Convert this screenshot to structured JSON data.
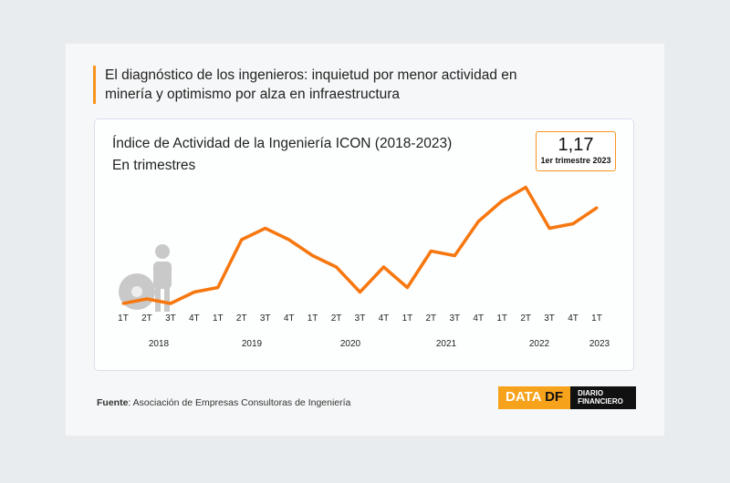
{
  "header": {
    "title": "El diagnóstico de los ingenieros: inquietud por menor actividad en minería y optimismo por alza en infraestructura"
  },
  "kpi": {
    "value": "1,17",
    "label": "1er trimestre 2023"
  },
  "source": {
    "label": "Fuente",
    "text": ": Asociación de Empresas Consultoras de Ingeniería"
  },
  "logo": {
    "data": "DATA",
    "df": "DF",
    "brand1": "DIARIO",
    "brand2": "FINANCIERO"
  },
  "chart_data": {
    "type": "line",
    "title": "Índice de Actividad de la Ingeniería ICON (2018-2023)",
    "subtitle": "En trimestres",
    "categories": [
      "1T",
      "2T",
      "3T",
      "4T",
      "1T",
      "2T",
      "3T",
      "4T",
      "1T",
      "2T",
      "3T",
      "4T",
      "1T",
      "2T",
      "3T",
      "4T",
      "1T",
      "2T",
      "3T",
      "4T",
      "1T"
    ],
    "years": [
      "2018",
      "2019",
      "2020",
      "2021",
      "2022",
      "2023"
    ],
    "series": [
      {
        "name": "ICON",
        "color": "#f7770f",
        "values": [
          0.75,
          0.77,
          0.75,
          0.8,
          0.82,
          1.03,
          1.08,
          1.03,
          0.96,
          0.91,
          0.8,
          0.91,
          0.82,
          0.98,
          0.96,
          1.11,
          1.2,
          1.26,
          1.08,
          1.1,
          1.17
        ]
      }
    ],
    "xlabel": "",
    "ylabel": "",
    "grid": false
  }
}
